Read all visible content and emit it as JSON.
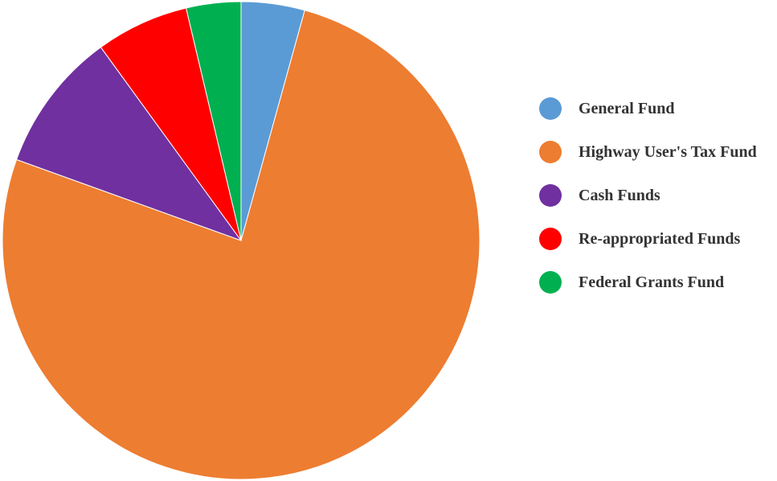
{
  "chart_data": {
    "type": "pie",
    "title": "",
    "start_angle": "12 o'clock",
    "direction": "clockwise",
    "legend_position": "right",
    "slices": [
      {
        "label": "General Fund",
        "value": 4.3,
        "color": "#5b9bd5"
      },
      {
        "label": "Highway User's Tax Fund",
        "value": 76.2,
        "color": "#ed7d31"
      },
      {
        "label": "Cash Funds",
        "value": 9.5,
        "color": "#7030a0"
      },
      {
        "label": "Re-appropriated Funds",
        "value": 6.3,
        "color": "#ff0000"
      },
      {
        "label": "Federal Grants Fund",
        "value": 3.7,
        "color": "#00b050"
      }
    ]
  }
}
